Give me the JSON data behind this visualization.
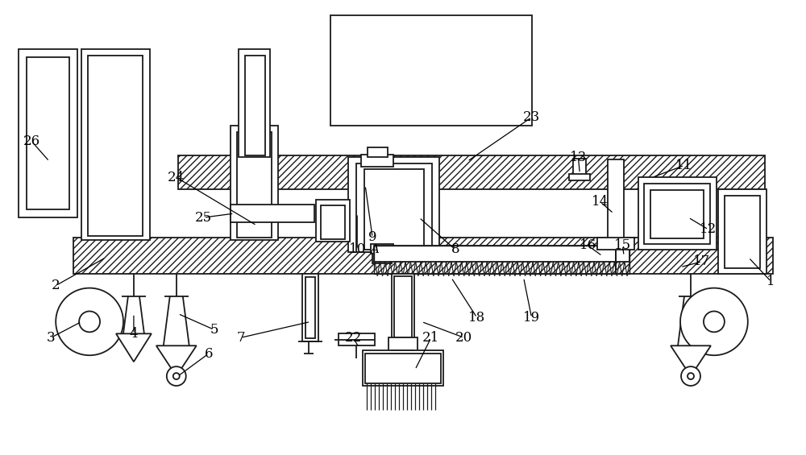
{
  "bg_color": "#ffffff",
  "line_color": "#1a1a1a",
  "fig_width": 10.0,
  "fig_height": 5.65,
  "lw": 1.3
}
